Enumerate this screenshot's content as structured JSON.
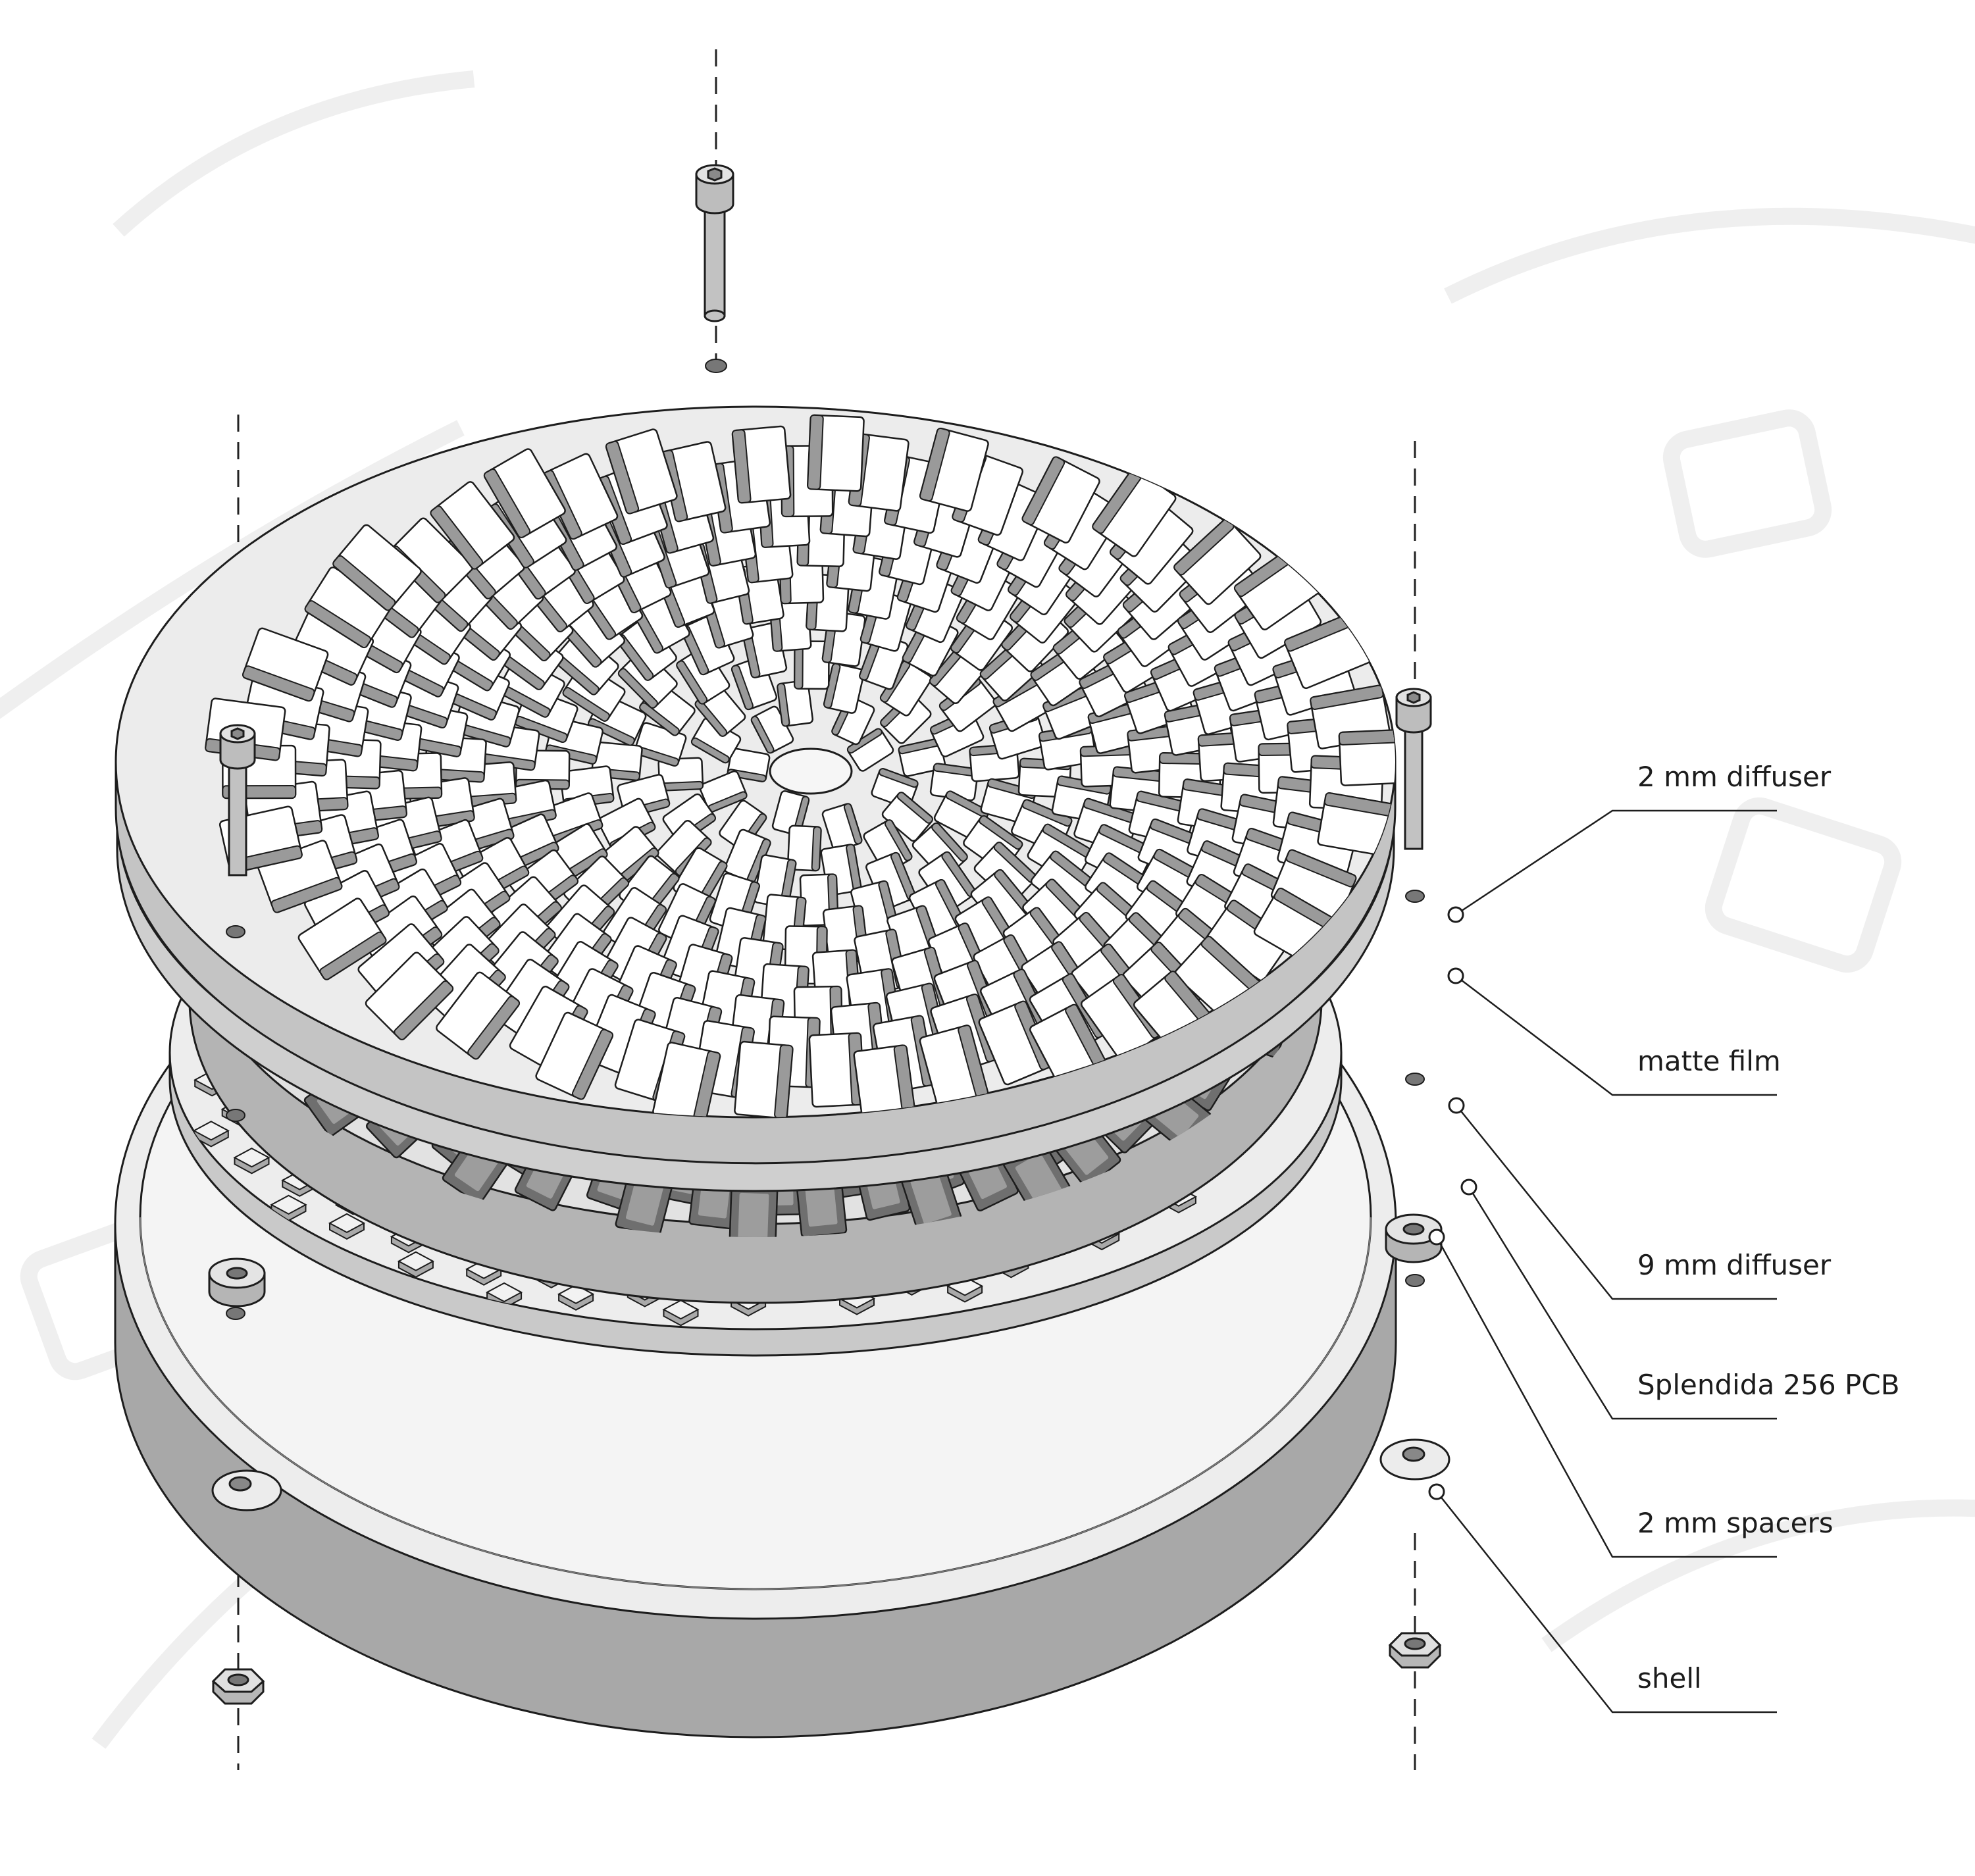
{
  "diagram": {
    "type": "exploded assembly view",
    "components": [
      {
        "id": "diffuser-2mm",
        "label": "2 mm diffuser"
      },
      {
        "id": "matte-film",
        "label": "matte film"
      },
      {
        "id": "diffuser-9mm",
        "label": "9 mm diffuser"
      },
      {
        "id": "pcb",
        "label": "Splendida 256 PCB"
      },
      {
        "id": "spacers",
        "label": "2 mm spacers"
      },
      {
        "id": "shell",
        "label": "shell"
      }
    ],
    "hardware": {
      "screws": 3,
      "nuts": 2,
      "spacers_shown": 4
    }
  },
  "palette": {
    "background": "#ffffff",
    "pattern": "#f0f0f0",
    "plate": "#ececec",
    "plate_side": "#c9c9c9",
    "deep_side": "#a8a8a8",
    "cell": "#ffffff",
    "cell_shadow": "#6f6f6f",
    "stroke": "#1d1d1d"
  }
}
